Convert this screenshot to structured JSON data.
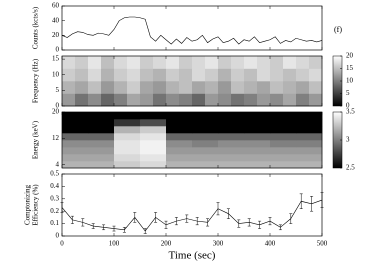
{
  "chart_data": [
    {
      "type": "line",
      "ylabel": [
        "Counts (kcts/s)"
      ],
      "annotation": "(f)",
      "color": "#000000",
      "xtick_labels": false,
      "x": [
        0,
        10,
        20,
        30,
        40,
        50,
        60,
        70,
        80,
        90,
        100,
        110,
        120,
        130,
        140,
        150,
        160,
        170,
        180,
        190,
        200,
        210,
        220,
        230,
        240,
        250,
        260,
        270,
        280,
        290,
        300,
        310,
        320,
        330,
        340,
        350,
        360,
        370,
        380,
        390,
        400,
        410,
        420,
        430,
        440,
        450,
        460,
        470,
        480,
        490,
        500
      ],
      "values": [
        20,
        17,
        22,
        25,
        24,
        21,
        20,
        23,
        22,
        20,
        28,
        40,
        44,
        45,
        45,
        44,
        42,
        18,
        12,
        20,
        14,
        8,
        15,
        9,
        17,
        12,
        14,
        20,
        10,
        15,
        18,
        10,
        12,
        16,
        8,
        14,
        12,
        18,
        10,
        12,
        14,
        18,
        9,
        13,
        11,
        16,
        14,
        12,
        13,
        11,
        13
      ],
      "xlim": [
        0,
        500
      ],
      "xticks": [
        0,
        100,
        200,
        300,
        400,
        500
      ],
      "ylim": [
        0,
        60
      ],
      "yticks": [
        0,
        20,
        40,
        60
      ]
    },
    {
      "type": "heatmap",
      "ylabel": [
        "Frequency (Hz)"
      ],
      "xtick_labels": false,
      "xlim": [
        0,
        500
      ],
      "xticks": [
        0,
        100,
        200,
        300,
        400,
        500
      ],
      "ylim": [
        0,
        16
      ],
      "yticks": [
        0,
        5,
        10,
        15
      ],
      "zlim": [
        0,
        20
      ],
      "colorbar_ticks": [
        0,
        5,
        10,
        15,
        20
      ],
      "z": [
        [
          12,
          9,
          11,
          8,
          10,
          13,
          12,
          9,
          11,
          10,
          8,
          12,
          11,
          9,
          10,
          12,
          11,
          13,
          10,
          12
        ],
        [
          14,
          13,
          15,
          12,
          14,
          16,
          13,
          12,
          14,
          15,
          13,
          14,
          12,
          15,
          14,
          13,
          15,
          14,
          13,
          15
        ],
        [
          16,
          15,
          17,
          14,
          16,
          17,
          15,
          14,
          16,
          15,
          17,
          16,
          14,
          16,
          15,
          17,
          16,
          15,
          16,
          17
        ],
        [
          17,
          16,
          18,
          15,
          17,
          18,
          16,
          17,
          18,
          16,
          17,
          18,
          16,
          17,
          18,
          17,
          16,
          18,
          17,
          16
        ]
      ]
    },
    {
      "type": "heatmap",
      "ylabel": [
        "Energy (keV)"
      ],
      "xtick_labels": false,
      "xlim": [
        0,
        500
      ],
      "xticks": [
        0,
        100,
        200,
        300,
        400,
        500
      ],
      "ylim": [
        3,
        20
      ],
      "yticks": [
        4,
        12,
        20
      ],
      "zlim": [
        2.5,
        3.5
      ],
      "colorbar_ticks": [
        2.5,
        3,
        3.5
      ],
      "z": [
        [
          3.2,
          3.2,
          3.3,
          3.35,
          3.2,
          3.2,
          3.2,
          3.2,
          3.2,
          3.2
        ],
        [
          3.15,
          3.15,
          3.35,
          3.4,
          3.15,
          3.15,
          3.15,
          3.15,
          3.15,
          3.15
        ],
        [
          3.1,
          3.1,
          3.4,
          3.45,
          3.1,
          3.1,
          3.1,
          3.1,
          3.1,
          3.1
        ],
        [
          3.05,
          3.05,
          3.4,
          3.45,
          3.05,
          3.0,
          3.05,
          3.05,
          3.0,
          3.0
        ],
        [
          2.9,
          2.9,
          3.35,
          3.4,
          2.9,
          2.9,
          2.9,
          2.9,
          2.9,
          2.9
        ],
        [
          2.5,
          2.5,
          3.2,
          3.3,
          2.5,
          2.5,
          2.5,
          2.5,
          2.5,
          2.5
        ],
        [
          2.5,
          2.5,
          2.7,
          2.8,
          2.5,
          2.5,
          2.5,
          2.5,
          2.5,
          2.5
        ],
        [
          2.5,
          2.5,
          2.5,
          2.5,
          2.5,
          2.5,
          2.5,
          2.5,
          2.5,
          2.5
        ]
      ]
    },
    {
      "type": "line",
      "ylabel": [
        "Comptonizing",
        "Efficiency (%)"
      ],
      "xlabel": "Time (sec)",
      "color": "#000000",
      "x": [
        0,
        20,
        40,
        60,
        80,
        100,
        120,
        140,
        160,
        180,
        200,
        220,
        240,
        260,
        280,
        300,
        320,
        340,
        360,
        380,
        400,
        420,
        440,
        460,
        480,
        500
      ],
      "values": [
        0.23,
        0.13,
        0.11,
        0.08,
        0.07,
        0.06,
        0.05,
        0.15,
        0.04,
        0.15,
        0.09,
        0.12,
        0.14,
        0.12,
        0.11,
        0.22,
        0.18,
        0.1,
        0.11,
        0.09,
        0.12,
        0.07,
        0.14,
        0.28,
        0.26,
        0.29
      ],
      "errors": [
        0.04,
        0.03,
        0.03,
        0.02,
        0.02,
        0.02,
        0.02,
        0.04,
        0.02,
        0.04,
        0.03,
        0.03,
        0.03,
        0.03,
        0.03,
        0.05,
        0.04,
        0.03,
        0.03,
        0.03,
        0.03,
        0.02,
        0.04,
        0.06,
        0.06,
        0.06
      ],
      "xlim": [
        0,
        500
      ],
      "xticks": [
        0,
        100,
        200,
        300,
        400,
        500
      ],
      "ylim": [
        0,
        0.5
      ],
      "yticks": [
        0,
        0.1,
        0.2,
        0.3,
        0.4,
        0.5
      ]
    }
  ]
}
